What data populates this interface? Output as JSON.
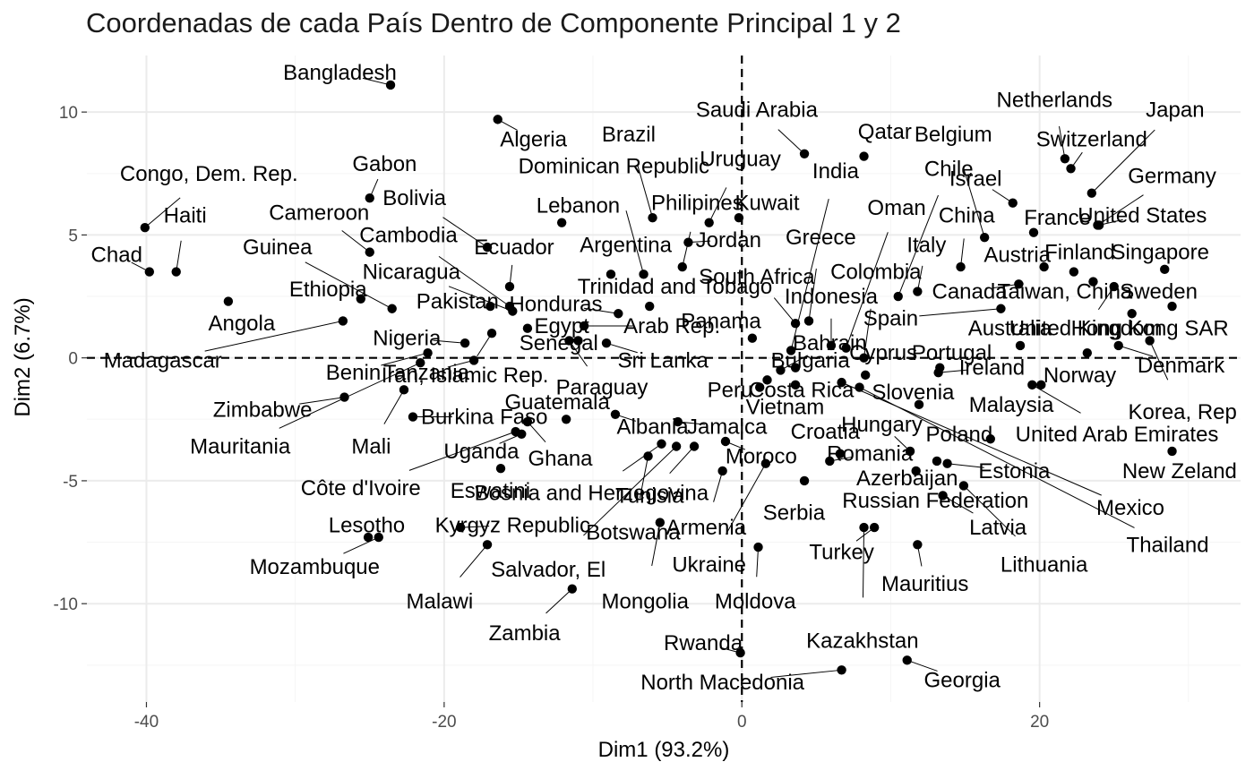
{
  "chart_data": {
    "type": "scatter",
    "title": "Coordenadas de cada País Dentro de Componente Principal 1 y 2",
    "xlabel": "Dim1 (93.2%)",
    "ylabel": "Dim2 (6.7%)",
    "xlim": [
      -44,
      33.5
    ],
    "ylim": [
      -14,
      12.3
    ],
    "xticks": [
      -40,
      -20,
      0,
      20
    ],
    "yticks": [
      -10,
      -5,
      0,
      5,
      10
    ],
    "reference_lines": {
      "x": 0,
      "y": 0,
      "style": "dashed"
    },
    "grid": true,
    "colors": {
      "point": "#000000",
      "grid_major": "#ebebeb",
      "grid_minor": "#f5f5f5",
      "text": "#000000",
      "axis_text": "#4d4d4d"
    },
    "points": [
      {
        "name": "Bangladesh",
        "x": -23.6,
        "y": 11.1,
        "lx": -27,
        "ly": 11.6
      },
      {
        "name": "Algeria",
        "x": -16.4,
        "y": 9.7,
        "lx": -14,
        "ly": 8.9
      },
      {
        "name": "Brazil",
        "x": -6.0,
        "y": 5.7,
        "lx": -7.6,
        "ly": 9.1
      },
      {
        "name": "Saudi Arabia",
        "x": 4.2,
        "y": 8.3,
        "lx": 1.0,
        "ly": 10.1
      },
      {
        "name": "Qatar",
        "x": 8.2,
        "y": 8.2,
        "lx": 9.6,
        "ly": 9.2
      },
      {
        "name": "Netherlands",
        "x": 21.7,
        "y": 8.1,
        "lx": 21.0,
        "ly": 10.5
      },
      {
        "name": "Japan",
        "x": 23.5,
        "y": 6.7,
        "lx": 29.1,
        "ly": 10.1
      },
      {
        "name": "Switzerland",
        "x": 22.1,
        "y": 7.7,
        "lx": 23.5,
        "ly": 8.9
      },
      {
        "name": "Belgium",
        "x": 16.3,
        "y": 4.9,
        "lx": 14.2,
        "ly": 9.1
      },
      {
        "name": "Israel",
        "x": 18.2,
        "y": 6.3,
        "lx": 15.7,
        "ly": 7.3
      },
      {
        "name": "Germany",
        "x": 23.9,
        "y": 5.4,
        "lx": 28.9,
        "ly": 7.4
      },
      {
        "name": "France",
        "x": 19.6,
        "y": 5.1,
        "lx": 21.2,
        "ly": 5.7
      },
      {
        "name": "United States",
        "x": 24.0,
        "y": 5.4,
        "lx": 26.9,
        "ly": 5.8
      },
      {
        "name": "Singapore",
        "x": 28.4,
        "y": 3.6,
        "lx": 28.1,
        "ly": 4.3
      },
      {
        "name": "Finland",
        "x": 22.3,
        "y": 3.5,
        "lx": 22.7,
        "ly": 4.3
      },
      {
        "name": "Sweden",
        "x": 28.9,
        "y": 2.1,
        "lx": 28.0,
        "ly": 2.7
      },
      {
        "name": "Taiwan, China",
        "x": 23.6,
        "y": 3.1,
        "lx": 21.7,
        "ly": 2.7
      },
      {
        "name": "Hong Kong SAR",
        "x": 26.2,
        "y": 1.8,
        "lx": 27.4,
        "ly": 1.2
      },
      {
        "name": "United Kingdom",
        "x": 25.0,
        "y": 2.9,
        "lx": 23.1,
        "ly": 1.2
      },
      {
        "name": "Austria",
        "x": 20.3,
        "y": 3.7,
        "lx": 18.5,
        "ly": 4.2
      },
      {
        "name": "China",
        "x": 14.7,
        "y": 3.7,
        "lx": 15.1,
        "ly": 5.8
      },
      {
        "name": "Chile",
        "x": 10.5,
        "y": 2.5,
        "lx": 13.9,
        "ly": 7.7
      },
      {
        "name": "Italy",
        "x": 11.8,
        "y": 2.7,
        "lx": 12.4,
        "ly": 4.6
      },
      {
        "name": "Canada",
        "x": 18.6,
        "y": 3.0,
        "lx": 15.3,
        "ly": 2.7
      },
      {
        "name": "Spain",
        "x": 17.4,
        "y": 2.0,
        "lx": 10.0,
        "ly": 1.6
      },
      {
        "name": "Australia",
        "x": 18.7,
        "y": 0.5,
        "lx": 18.0,
        "ly": 1.2
      },
      {
        "name": "Denmark",
        "x": 25.3,
        "y": 0.5,
        "lx": 29.5,
        "ly": -0.3
      },
      {
        "name": "Norway",
        "x": 23.2,
        "y": 0.2,
        "lx": 22.7,
        "ly": -0.7
      },
      {
        "name": "Korea, Rep",
        "x": 27.4,
        "y": 0.7,
        "lx": 29.6,
        "ly": -2.2
      },
      {
        "name": "Ireland",
        "x": 13.2,
        "y": -0.6,
        "lx": 16.8,
        "ly": -0.4
      },
      {
        "name": "Portugal",
        "x": 13.3,
        "y": -0.4,
        "lx": 14.1,
        "ly": 0.2
      },
      {
        "name": "Cyprus",
        "x": 8.3,
        "y": -0.7,
        "lx": 9.5,
        "ly": 0.2
      },
      {
        "name": "Malaysia",
        "x": 20.1,
        "y": -1.1,
        "lx": 18.1,
        "ly": -1.9
      },
      {
        "name": "United Arab Emirates",
        "x": 19.5,
        "y": -1.1,
        "lx": 25.2,
        "ly": -3.1
      },
      {
        "name": "Poland",
        "x": 16.7,
        "y": -3.3,
        "lx": 14.6,
        "ly": -3.1
      },
      {
        "name": "New Zeland",
        "x": 28.9,
        "y": -3.8,
        "lx": 29.4,
        "ly": -4.6
      },
      {
        "name": "Estonia",
        "x": 13.8,
        "y": -4.3,
        "lx": 18.3,
        "ly": -4.6
      },
      {
        "name": "Mexico",
        "x": 6.7,
        "y": -1.0,
        "lx": 26.1,
        "ly": -6.1
      },
      {
        "name": "Thailand",
        "x": 7.9,
        "y": -1.2,
        "lx": 28.6,
        "ly": -7.6
      },
      {
        "name": "Latvia",
        "x": 13.5,
        "y": -5.6,
        "lx": 17.2,
        "ly": -6.9
      },
      {
        "name": "Lithuania",
        "x": 14.9,
        "y": -5.2,
        "lx": 20.3,
        "ly": -8.4
      },
      {
        "name": "Slovenia",
        "x": 11.9,
        "y": -1.9,
        "lx": 11.5,
        "ly": -1.4
      },
      {
        "name": "Hungary",
        "x": 11.3,
        "y": -3.8,
        "lx": 9.4,
        "ly": -2.7
      },
      {
        "name": "Croatia",
        "x": 6.6,
        "y": -3.9,
        "lx": 5.6,
        "ly": -3.0
      },
      {
        "name": "Romania",
        "x": 5.9,
        "y": -4.2,
        "lx": 8.6,
        "ly": -3.9
      },
      {
        "name": "Azerbaijan",
        "x": 13.1,
        "y": -4.2,
        "lx": 11.1,
        "ly": -4.9
      },
      {
        "name": "Russian Federation",
        "x": 11.7,
        "y": -4.6,
        "lx": 13.0,
        "ly": -5.8
      },
      {
        "name": "Serbia",
        "x": 4.2,
        "y": -5.0,
        "lx": 3.5,
        "ly": -6.3
      },
      {
        "name": "Turkey",
        "x": 8.9,
        "y": -6.9,
        "lx": 6.7,
        "ly": -7.9
      },
      {
        "name": "Mauritius",
        "x": 11.8,
        "y": -7.6,
        "lx": 12.3,
        "ly": -9.2
      },
      {
        "name": "Kazakhstan",
        "x": 8.2,
        "y": -6.9,
        "lx": 8.1,
        "ly": -11.5
      },
      {
        "name": "Georgia",
        "x": 11.1,
        "y": -12.3,
        "lx": 14.8,
        "ly": -13.1
      },
      {
        "name": "North Macedonia",
        "x": 6.7,
        "y": -12.7,
        "lx": -1.3,
        "ly": -13.2
      },
      {
        "name": "Rwanda",
        "x": -0.1,
        "y": -12.0,
        "lx": -2.6,
        "ly": -11.6
      },
      {
        "name": "Moldova",
        "x": 1.1,
        "y": -7.7,
        "lx": 0.9,
        "ly": -9.9
      },
      {
        "name": "Ukraine",
        "x": 1.6,
        "y": -4.3,
        "lx": -2.2,
        "ly": -8.4
      },
      {
        "name": "Armenia",
        "x": -1.3,
        "y": -4.6,
        "lx": -2.4,
        "ly": -6.9
      },
      {
        "name": "Tunisia",
        "x": -3.2,
        "y": -3.6,
        "lx": -6.2,
        "ly": -5.6
      },
      {
        "name": "Moroco",
        "x": -1.1,
        "y": -3.4,
        "lx": 1.3,
        "ly": -4.0
      },
      {
        "name": "Jamaica",
        "x": -4.3,
        "y": -2.6,
        "lx": -1.0,
        "ly": -2.8
      },
      {
        "name": "Vietnam",
        "x": 3.6,
        "y": -1.1,
        "lx": 2.9,
        "ly": -2.0
      },
      {
        "name": "Peru",
        "x": 1.2,
        "y": -1.2,
        "lx": -0.8,
        "ly": -1.3
      },
      {
        "name": "Costa Rica",
        "x": 1.7,
        "y": -0.9,
        "lx": 4.0,
        "ly": -1.3
      },
      {
        "name": "Bulgaria",
        "x": 3.6,
        "y": -0.4,
        "lx": 4.6,
        "ly": -0.1
      },
      {
        "name": "Panama",
        "x": 0.7,
        "y": 0.8,
        "lx": -1.4,
        "ly": 1.5
      },
      {
        "name": "Bahrain",
        "x": 2.6,
        "y": -0.5,
        "lx": 5.9,
        "ly": 0.6
      },
      {
        "name": "Indonesia",
        "x": 6.0,
        "y": 0.5,
        "lx": 6.0,
        "ly": 2.5
      },
      {
        "name": "Colombia",
        "x": 8.2,
        "y": 0.0,
        "lx": 9.0,
        "ly": 3.5
      },
      {
        "name": "South Africa",
        "x": 3.6,
        "y": 1.4,
        "lx": 1.0,
        "ly": 3.3
      },
      {
        "name": "Greece",
        "x": 4.5,
        "y": 1.5,
        "lx": 5.3,
        "ly": 4.9
      },
      {
        "name": "Oman",
        "x": 7.0,
        "y": 0.4,
        "lx": 10.4,
        "ly": 6.1
      },
      {
        "name": "India",
        "x": 3.3,
        "y": 0.3,
        "lx": 6.3,
        "ly": 7.6
      },
      {
        "name": "Kuwait",
        "x": -0.2,
        "y": 5.7,
        "lx": 1.7,
        "ly": 6.3
      },
      {
        "name": "Uruguay",
        "x": -2.2,
        "y": 5.5,
        "lx": -0.1,
        "ly": 8.1
      },
      {
        "name": "Jordan",
        "x": -3.6,
        "y": 4.7,
        "lx": -0.9,
        "ly": 4.8
      },
      {
        "name": "Philipines",
        "x": -4.0,
        "y": 3.7,
        "lx": -3.0,
        "ly": 6.3
      },
      {
        "name": "Dominican Republic",
        "x": -6.6,
        "y": 3.4,
        "lx": -8.6,
        "ly": 7.8
      },
      {
        "name": "Argentina",
        "x": -8.8,
        "y": 3.4,
        "lx": -7.8,
        "ly": 4.6
      },
      {
        "name": "Lebanon",
        "x": -12.1,
        "y": 5.5,
        "lx": -11.0,
        "ly": 6.2
      },
      {
        "name": "Trinidad and Tobago",
        "x": -6.2,
        "y": 2.1,
        "lx": -4.5,
        "ly": 2.9
      },
      {
        "name": "Honduras",
        "x": -8.3,
        "y": 1.8,
        "lx": -12.5,
        "ly": 2.2
      },
      {
        "name": "Arab Rep.",
        "x": -10.6,
        "y": 1.3,
        "lx": -4.7,
        "ly": 1.3
      },
      {
        "name": "Egypt",
        "x": -11.0,
        "y": 0.7,
        "lx": -12.1,
        "ly": 1.3
      },
      {
        "name": "Ecuador",
        "x": -15.6,
        "y": 2.9,
        "lx": -15.3,
        "ly": 4.5
      },
      {
        "name": "Cambodia",
        "x": -15.6,
        "y": 2.1,
        "lx": -22.4,
        "ly": 5.0
      },
      {
        "name": "Bolivia",
        "x": -17.1,
        "y": 4.5,
        "lx": -22.0,
        "ly": 6.5
      },
      {
        "name": "Nicaragua",
        "x": -15.4,
        "y": 1.9,
        "lx": -22.2,
        "ly": 3.5
      },
      {
        "name": "Pakistan",
        "x": -16.9,
        "y": 2.1,
        "lx": -19.1,
        "ly": 2.3
      },
      {
        "name": "Senegal",
        "x": -14.4,
        "y": 1.2,
        "lx": -12.3,
        "ly": 0.6
      },
      {
        "name": "Sri Lanka",
        "x": -9.1,
        "y": 0.6,
        "lx": -5.3,
        "ly": -0.1
      },
      {
        "name": "Iran, Islamic Rep.",
        "x": -16.8,
        "y": 1.0,
        "lx": -18.6,
        "ly": -0.7
      },
      {
        "name": "Paraguay",
        "x": -11.6,
        "y": 0.7,
        "lx": -9.4,
        "ly": -1.2
      },
      {
        "name": "Nigeria",
        "x": -18.6,
        "y": 0.6,
        "lx": -22.5,
        "ly": 0.8
      },
      {
        "name": "Tanzania",
        "x": -18.0,
        "y": -0.1,
        "lx": -21.2,
        "ly": -0.6
      },
      {
        "name": "Benin",
        "x": -21.1,
        "y": 0.2,
        "lx": -26.1,
        "ly": -0.6
      },
      {
        "name": "Gabon",
        "x": -25.0,
        "y": 6.5,
        "lx": -24.0,
        "ly": 7.9
      },
      {
        "name": "Cameroon",
        "x": -25.0,
        "y": 4.3,
        "lx": -28.4,
        "ly": 5.9
      },
      {
        "name": "Guinea",
        "x": -23.5,
        "y": 2.0,
        "lx": -31.2,
        "ly": 4.5
      },
      {
        "name": "Ethiopia",
        "x": -25.6,
        "y": 2.4,
        "lx": -27.8,
        "ly": 2.8
      },
      {
        "name": "Congo, Dem. Rep.",
        "x": -40.1,
        "y": 5.3,
        "lx": -35.8,
        "ly": 7.5
      },
      {
        "name": "Haiti",
        "x": -38.0,
        "y": 3.5,
        "lx": -37.4,
        "ly": 5.8
      },
      {
        "name": "Chad",
        "x": -39.8,
        "y": 3.5,
        "lx": -42.0,
        "ly": 4.2
      },
      {
        "name": "Angola",
        "x": -34.5,
        "y": 2.3,
        "lx": -33.6,
        "ly": 1.4
      },
      {
        "name": "Madagascar",
        "x": -26.8,
        "y": 1.5,
        "lx": -38.9,
        "ly": -0.1
      },
      {
        "name": "Zimbabwe",
        "x": -26.7,
        "y": -1.6,
        "lx": -32.2,
        "ly": -2.1
      },
      {
        "name": "Mauritania",
        "x": -21.6,
        "y": -0.2,
        "lx": -33.7,
        "ly": -3.6
      },
      {
        "name": "Mali",
        "x": -22.7,
        "y": -1.3,
        "lx": -24.9,
        "ly": -3.6
      },
      {
        "name": "Burkina Faso",
        "x": -22.1,
        "y": -2.4,
        "lx": -17.3,
        "ly": -2.4
      },
      {
        "name": "Guatemala",
        "x": -11.8,
        "y": -2.5,
        "lx": -12.4,
        "ly": -1.8
      },
      {
        "name": "Uganda",
        "x": -14.8,
        "y": -3.1,
        "lx": -17.5,
        "ly": -3.8
      },
      {
        "name": "Ghana",
        "x": -14.4,
        "y": -2.6,
        "lx": -12.2,
        "ly": -4.1
      },
      {
        "name": "Côte d'Ivoire",
        "x": -15.2,
        "y": -3.0,
        "lx": -25.6,
        "ly": -5.3
      },
      {
        "name": "Albania",
        "x": -8.5,
        "y": -2.3,
        "lx": -6.0,
        "ly": -2.8
      },
      {
        "name": "Eswatini",
        "x": -16.2,
        "y": -4.5,
        "lx": -16.9,
        "ly": -5.4
      },
      {
        "name": "Bosnia and Herzegovina",
        "x": -5.4,
        "y": -3.5,
        "lx": -10.1,
        "ly": -5.5
      },
      {
        "name": "Kyrgyz Republic",
        "x": -18.9,
        "y": -6.9,
        "lx": -15.4,
        "ly": -6.8
      },
      {
        "name": "Botswana",
        "x": -6.3,
        "y": -4.0,
        "lx": -7.3,
        "ly": -7.1
      },
      {
        "name": "Lesotho",
        "x": -25.1,
        "y": -7.3,
        "lx": -25.2,
        "ly": -6.8
      },
      {
        "name": "Mozambuque",
        "x": -24.4,
        "y": -7.3,
        "lx": -28.7,
        "ly": -8.5
      },
      {
        "name": "Salvador, El",
        "x": -4.4,
        "y": -3.6,
        "lx": -13.0,
        "ly": -8.6
      },
      {
        "name": "Malawi",
        "x": -17.1,
        "y": -7.6,
        "lx": -20.3,
        "ly": -9.9
      },
      {
        "name": "Mongolia",
        "x": -5.5,
        "y": -6.7,
        "lx": -6.5,
        "ly": -9.9
      },
      {
        "name": "Zambia",
        "x": -11.4,
        "y": -9.4,
        "lx": -14.6,
        "ly": -11.2
      }
    ]
  }
}
